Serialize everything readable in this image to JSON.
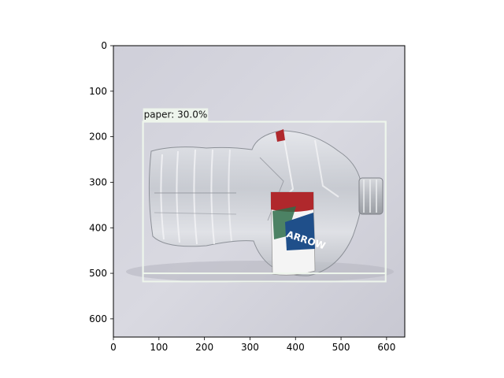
{
  "figure": {
    "x_ticks": [
      "0",
      "100",
      "200",
      "300",
      "400",
      "500",
      "600"
    ],
    "y_ticks": [
      "0",
      "100",
      "200",
      "300",
      "400",
      "500",
      "600"
    ],
    "x_range": [
      0,
      640
    ],
    "y_range": [
      640,
      0
    ],
    "image_description_colors": {
      "background": "#d4d4dc",
      "label_red": "#b0282c",
      "label_blue": "#1f4f8a",
      "box_color": "#eef6ec"
    }
  },
  "detection": {
    "label_text": "paper: 30.0%",
    "box": {
      "x0": 65,
      "y0": 167,
      "x1": 598,
      "y1": 518
    },
    "inner_box": {
      "x0": 65,
      "y0": 167,
      "x1": 598,
      "y1": 500
    }
  },
  "bottle_label": {
    "brand_text": "ARROW"
  }
}
